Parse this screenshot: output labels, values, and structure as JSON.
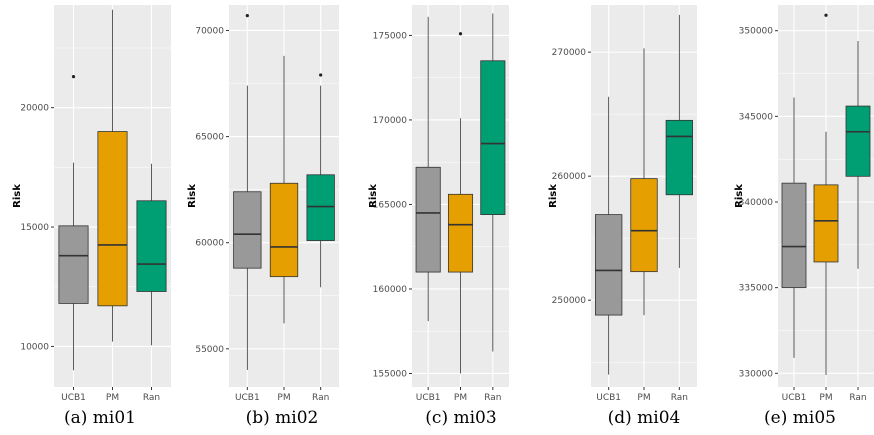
{
  "colors": {
    "UCB1": "#999999",
    "PM": "#e69f00",
    "Ran": "#009e73",
    "panel": "#ebebeb",
    "grid": "#ffffff"
  },
  "chart_data": [
    {
      "type": "box",
      "caption": "(a) mi01",
      "ylabel": "Risk",
      "ylim": [
        8300,
        24300
      ],
      "yticks": [
        10000,
        15000,
        20000
      ],
      "ytick_labels": [
        "10000",
        "15000",
        "20000"
      ],
      "categories": [
        "UCB1",
        "PM",
        "Ran"
      ],
      "boxes": [
        {
          "category": "UCB1",
          "whisker_low": 9000,
          "q1": 11800,
          "median": 13800,
          "q3": 15050,
          "whisker_high": 17700,
          "outliers": [
            21300
          ]
        },
        {
          "category": "PM",
          "whisker_low": 10200,
          "q1": 11700,
          "median": 14250,
          "q3": 19000,
          "whisker_high": 24100,
          "outliers": []
        },
        {
          "category": "Ran",
          "whisker_low": 10050,
          "q1": 12300,
          "median": 13450,
          "q3": 16100,
          "whisker_high": 17650,
          "outliers": []
        }
      ]
    },
    {
      "type": "box",
      "caption": "(b) mi02",
      "ylabel": "Risk",
      "ylim": [
        53200,
        71200
      ],
      "yticks": [
        55000,
        60000,
        65000,
        70000
      ],
      "ytick_labels": [
        "55000",
        "60000",
        "65000",
        "70000"
      ],
      "categories": [
        "UCB1",
        "PM",
        "Ran"
      ],
      "boxes": [
        {
          "category": "UCB1",
          "whisker_low": 54000,
          "q1": 58800,
          "median": 60400,
          "q3": 62400,
          "whisker_high": 67400,
          "outliers": [
            70700
          ]
        },
        {
          "category": "PM",
          "whisker_low": 56200,
          "q1": 58400,
          "median": 59800,
          "q3": 62800,
          "whisker_high": 68800,
          "outliers": []
        },
        {
          "category": "Ran",
          "whisker_low": 57900,
          "q1": 60100,
          "median": 61700,
          "q3": 63200,
          "whisker_high": 67400,
          "outliers": [
            67900
          ]
        }
      ]
    },
    {
      "type": "box",
      "caption": "(c) mi03",
      "ylabel": "Risk",
      "ylim": [
        154200,
        176800
      ],
      "yticks": [
        155000,
        160000,
        165000,
        170000,
        175000
      ],
      "ytick_labels": [
        "155000",
        "160000",
        "165000",
        "170000",
        "175000"
      ],
      "categories": [
        "UCB1",
        "PM",
        "Ran"
      ],
      "boxes": [
        {
          "category": "UCB1",
          "whisker_low": 158100,
          "q1": 161000,
          "median": 164500,
          "q3": 167200,
          "whisker_high": 176100,
          "outliers": []
        },
        {
          "category": "PM",
          "whisker_low": 155000,
          "q1": 161000,
          "median": 163800,
          "q3": 165600,
          "whisker_high": 170100,
          "outliers": [
            175100
          ]
        },
        {
          "category": "Ran",
          "whisker_low": 156300,
          "q1": 164400,
          "median": 168600,
          "q3": 173500,
          "whisker_high": 176300,
          "outliers": []
        }
      ]
    },
    {
      "type": "box",
      "caption": "(d) mi04",
      "ylabel": "Risk",
      "ylim": [
        243000,
        273800
      ],
      "yticks": [
        250000,
        260000,
        270000
      ],
      "ytick_labels": [
        "250000",
        "260000",
        "270000"
      ],
      "categories": [
        "UCB1",
        "PM",
        "Ran"
      ],
      "boxes": [
        {
          "category": "UCB1",
          "whisker_low": 244000,
          "q1": 248800,
          "median": 252400,
          "q3": 256900,
          "whisker_high": 266400,
          "outliers": []
        },
        {
          "category": "PM",
          "whisker_low": 248800,
          "q1": 252300,
          "median": 255600,
          "q3": 259800,
          "whisker_high": 270300,
          "outliers": []
        },
        {
          "category": "Ran",
          "whisker_low": 252600,
          "q1": 258500,
          "median": 263200,
          "q3": 264500,
          "whisker_high": 273000,
          "outliers": []
        }
      ]
    },
    {
      "type": "box",
      "caption": "(e) mi05",
      "ylabel": "Risk",
      "ylim": [
        329200,
        351500
      ],
      "yticks": [
        330000,
        335000,
        340000,
        345000,
        350000
      ],
      "ytick_labels": [
        "330000",
        "335000",
        "340000",
        "345000",
        "350000"
      ],
      "categories": [
        "UCB1",
        "PM",
        "Ran"
      ],
      "boxes": [
        {
          "category": "UCB1",
          "whisker_low": 330900,
          "q1": 335000,
          "median": 337400,
          "q3": 341100,
          "whisker_high": 346100,
          "outliers": []
        },
        {
          "category": "PM",
          "whisker_low": 329900,
          "q1": 336500,
          "median": 338900,
          "q3": 341000,
          "whisker_high": 344100,
          "outliers": [
            350900
          ]
        },
        {
          "category": "Ran",
          "whisker_low": 336100,
          "q1": 341500,
          "median": 344100,
          "q3": 345600,
          "whisker_high": 349400,
          "outliers": []
        }
      ]
    }
  ]
}
